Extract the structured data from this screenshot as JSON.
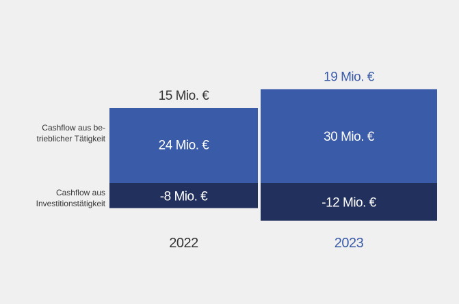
{
  "colors": {
    "background": "#f0f0f0",
    "operating_2022": "#3a5ba8",
    "operating_2023": "#3a5ba8",
    "investing": "#22305e",
    "label_2022": "#333333",
    "label_2023": "#3a5ba8",
    "bar_text": "#ffffff"
  },
  "chart_data": {
    "type": "bar",
    "title": "",
    "categories": [
      "2022",
      "2023"
    ],
    "row_labels": {
      "operating": "Cashflow aus be-\ntrieblicher Tätigkeit",
      "investing": "Cashflow aus\nInvestitionstätigkeit"
    },
    "series": [
      {
        "name": "Cashflow aus betrieblicher Tätigkeit",
        "values": [
          24,
          30
        ],
        "labels": [
          "24 Mio. €",
          "30 Mio. €"
        ]
      },
      {
        "name": "Cashflow aus Investitionstätigkeit",
        "values": [
          -8,
          -12
        ],
        "labels": [
          "-8 Mio. €",
          "-12 Mio. €"
        ]
      }
    ],
    "totals": {
      "values": [
        15,
        19
      ],
      "labels": [
        "15 Mio. €",
        "19 Mio. €"
      ]
    }
  }
}
